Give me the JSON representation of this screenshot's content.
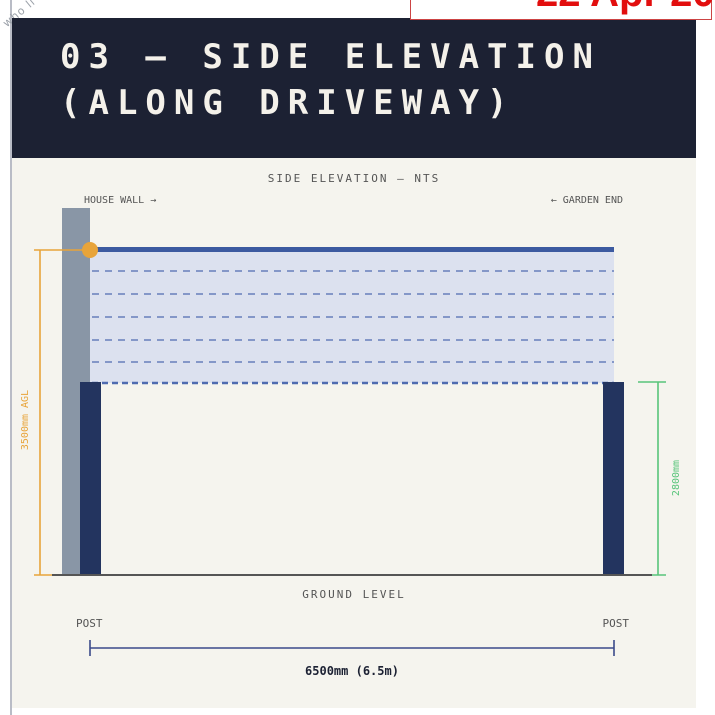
{
  "header": {
    "title": "03 — SIDE ELEVATION\n(ALONG DRIVEWAY)"
  },
  "stamp": {
    "date_text": "22 Apr 20"
  },
  "watermark": {
    "text": "who li"
  },
  "diagram": {
    "caption": "SIDE ELEVATION — NTS",
    "house_wall_label": "HOUSE WALL →",
    "garden_end_label": "← GARDEN END",
    "height_agl_label": "3500mm AGL",
    "post_height_label": "2800mm",
    "ground_label": "GROUND LEVEL",
    "post_left_label": "POST",
    "post_right_label": "POST",
    "span_label": "6500mm (6.5m)",
    "colors": {
      "frame": "#3c5aa0",
      "post": "#23345f",
      "wall": "#8996a6",
      "canopy_fill": "#dce1ef",
      "dashed": "#4f6bb0",
      "agl_dim": "#e8a43a",
      "post_dim": "#58c47a",
      "span_dim": "#3b4a8a",
      "ground": "#555555"
    }
  }
}
